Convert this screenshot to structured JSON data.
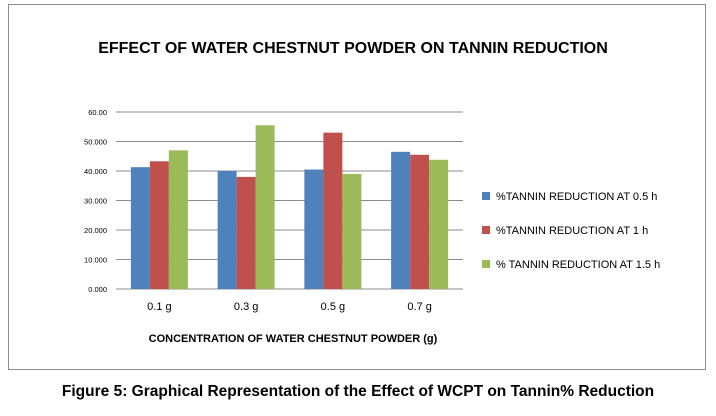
{
  "caption": "Figure 5: Graphical Representation of the Effect of WCPT on Tannin% Reduction",
  "chart_data": {
    "type": "bar",
    "title": "EFFECT OF WATER CHESTNUT POWDER ON TANNIN REDUCTION",
    "xlabel": "CONCENTRATION OF WATER CHESTNUT POWDER (g)",
    "ylabel": "",
    "categories": [
      "0.1 g",
      "0.3 g",
      "0.5 g",
      "0.7 g"
    ],
    "ylim": [
      0,
      60
    ],
    "yticks": [
      "0.000",
      "10.000",
      "20.000",
      "30.000",
      "40.000",
      "50.000",
      "60.00"
    ],
    "grid": true,
    "legend_position": "right",
    "series": [
      {
        "name": "%TANNIN REDUCTION AT 0.5 h",
        "color": "#4f81bd",
        "values": [
          41.3,
          40.0,
          40.5,
          46.5
        ]
      },
      {
        "name": "%TANNIN REDUCTION AT 1 h",
        "color": "#c0504d",
        "values": [
          43.3,
          38.0,
          53.0,
          45.5
        ]
      },
      {
        "name": "% TANNIN REDUCTION AT 1.5 h",
        "color": "#9bbb59",
        "values": [
          47.0,
          55.5,
          39.0,
          43.8
        ]
      }
    ]
  }
}
